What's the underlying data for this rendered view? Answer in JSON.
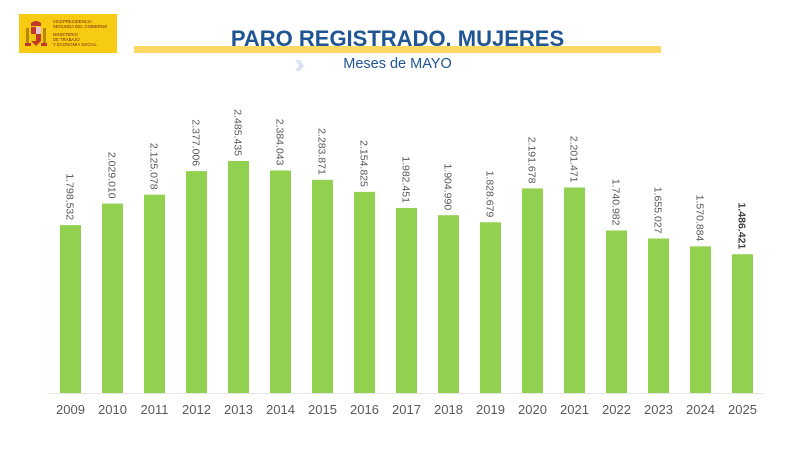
{
  "header": {
    "logo": {
      "line1": "VICEPRESIDENCIA\nSEGUNDA DEL GOBIERNO",
      "line2": "MINISTERIO\nDE TRABAJO\nY ECONOMÍA SOCIAL"
    },
    "title": "PARO REGISTRADO. MUJERES",
    "subtitle": "Meses de MAYO"
  },
  "colors": {
    "bar": "#92d050",
    "title": "#1f5592",
    "band": "#fdd865",
    "label": "#595959",
    "logo": "#f7cb12"
  },
  "chart_data": {
    "type": "bar",
    "title": "PARO REGISTRADO. MUJERES",
    "subtitle": "Meses de MAYO",
    "xlabel": "",
    "ylabel": "",
    "ylim": [
      0,
      2485435
    ],
    "grid": false,
    "categories": [
      "2009",
      "2010",
      "2011",
      "2012",
      "2013",
      "2014",
      "2015",
      "2016",
      "2017",
      "2018",
      "2019",
      "2020",
      "2021",
      "2022",
      "2023",
      "2024",
      "2025"
    ],
    "values": [
      1798532,
      2029010,
      2125078,
      2377006,
      2485435,
      2384043,
      2283871,
      2154825,
      1982451,
      1904990,
      1828679,
      2191678,
      2201471,
      1740982,
      1655027,
      1570884,
      1486421
    ],
    "data_labels": [
      "1.798.532",
      "2.029.010",
      "2.125.078",
      "2.377.006",
      "2.485.435",
      "2.384.043",
      "2.283.871",
      "2.154.825",
      "1.982.451",
      "1.904.990",
      "1.828.679",
      "2.191.678",
      "2.201.471",
      "1.740.982",
      "1.655.027",
      "1.570.884",
      "1.486.421"
    ],
    "highlight_last_label": true
  }
}
